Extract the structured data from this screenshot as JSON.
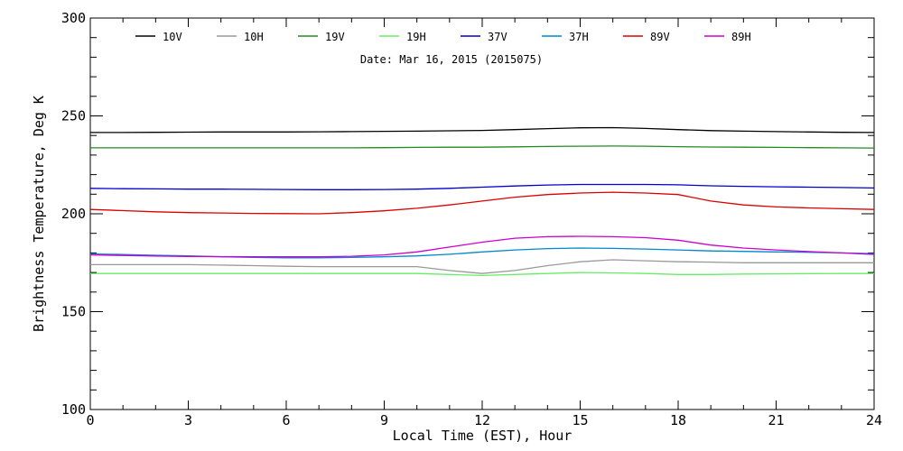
{
  "chart_data": {
    "type": "line",
    "title": "",
    "annotation": "Date: Mar 16, 2015 (2015075)",
    "xlabel": "Local Time (EST), Hour",
    "ylabel": "Brightness Temperature, Deg K",
    "xlim": [
      0,
      24
    ],
    "ylim": [
      100,
      300
    ],
    "x_ticks": [
      0,
      3,
      6,
      9,
      12,
      15,
      18,
      21,
      24
    ],
    "y_ticks": [
      100,
      150,
      200,
      250,
      300
    ],
    "grid": false,
    "legend_position": "top",
    "x": [
      0,
      1,
      2,
      3,
      4,
      5,
      6,
      7,
      8,
      9,
      10,
      11,
      12,
      13,
      14,
      15,
      16,
      17,
      18,
      19,
      20,
      21,
      22,
      23,
      24
    ],
    "series": [
      {
        "name": "10V",
        "color": "#000000",
        "values": [
          241.5,
          241.5,
          241.6,
          241.7,
          241.8,
          241.8,
          241.8,
          241.9,
          242.0,
          242.1,
          242.2,
          242.4,
          242.6,
          243.0,
          243.5,
          243.9,
          244.0,
          243.6,
          243.0,
          242.5,
          242.2,
          242.0,
          241.8,
          241.6,
          241.5
        ]
      },
      {
        "name": "10H",
        "color": "#999999",
        "values": [
          174.0,
          174.0,
          174.0,
          174.0,
          173.8,
          173.5,
          173.2,
          173.0,
          173.0,
          173.0,
          173.0,
          171.0,
          169.5,
          171.0,
          173.5,
          175.5,
          176.5,
          176.0,
          175.5,
          175.3,
          175.0,
          175.0,
          175.0,
          175.0,
          175.0
        ]
      },
      {
        "name": "19V",
        "color": "#228B22",
        "values": [
          233.7,
          233.7,
          233.7,
          233.7,
          233.7,
          233.7,
          233.7,
          233.7,
          233.7,
          233.8,
          233.9,
          234.0,
          234.0,
          234.2,
          234.4,
          234.5,
          234.6,
          234.5,
          234.3,
          234.1,
          234.0,
          233.9,
          233.8,
          233.7,
          233.6
        ]
      },
      {
        "name": "19H",
        "color": "#66EE66",
        "values": [
          169.5,
          169.5,
          169.5,
          169.5,
          169.5,
          169.5,
          169.5,
          169.5,
          169.5,
          169.5,
          169.5,
          169.0,
          168.5,
          169.0,
          169.5,
          170.0,
          169.8,
          169.5,
          169.0,
          169.0,
          169.2,
          169.3,
          169.4,
          169.5,
          169.5
        ]
      },
      {
        "name": "37V",
        "color": "#0000CC",
        "values": [
          213.0,
          212.8,
          212.7,
          212.6,
          212.6,
          212.5,
          212.4,
          212.3,
          212.3,
          212.4,
          212.6,
          213.0,
          213.6,
          214.2,
          214.7,
          215.0,
          215.0,
          215.0,
          214.8,
          214.3,
          214.0,
          213.8,
          213.6,
          213.4,
          213.2
        ]
      },
      {
        "name": "37H",
        "color": "#0088CC",
        "values": [
          179.5,
          179.2,
          178.8,
          178.5,
          178.0,
          177.7,
          177.5,
          177.5,
          177.7,
          178.0,
          178.5,
          179.3,
          180.5,
          181.5,
          182.2,
          182.5,
          182.3,
          182.0,
          181.5,
          181.0,
          180.8,
          180.5,
          180.3,
          180.0,
          179.7
        ]
      },
      {
        "name": "89V",
        "color": "#DD0000",
        "values": [
          202.2,
          201.6,
          201.0,
          200.6,
          200.4,
          200.2,
          200.1,
          200.0,
          200.6,
          201.5,
          202.8,
          204.5,
          206.5,
          208.5,
          209.8,
          210.6,
          211.0,
          210.6,
          209.8,
          206.5,
          204.5,
          203.5,
          203.0,
          202.6,
          202.2
        ]
      },
      {
        "name": "89H",
        "color": "#CC00CC",
        "values": [
          179.0,
          178.7,
          178.4,
          178.2,
          178.1,
          178.0,
          178.0,
          178.0,
          178.3,
          179.0,
          180.5,
          183.0,
          185.5,
          187.5,
          188.3,
          188.5,
          188.3,
          187.8,
          186.5,
          184.0,
          182.5,
          181.5,
          180.7,
          180.0,
          179.2
        ]
      }
    ]
  }
}
